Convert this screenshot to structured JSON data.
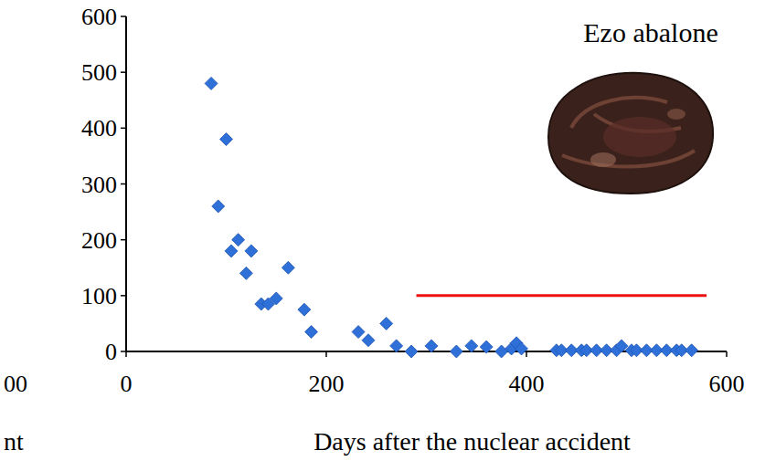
{
  "chart_data": {
    "type": "scatter",
    "title": "Ezo abalone",
    "x_label": "Days after the nuclear accident",
    "x": [
      85,
      92,
      100,
      105,
      112,
      120,
      125,
      135,
      142,
      150,
      162,
      178,
      185,
      232,
      242,
      260,
      270,
      285,
      305,
      330,
      345,
      360,
      375,
      385,
      390,
      395,
      430,
      435,
      445,
      455,
      460,
      470,
      480,
      490,
      495,
      505,
      510,
      520,
      530,
      540,
      550,
      555,
      565
    ],
    "values": [
      480,
      260,
      380,
      180,
      200,
      140,
      180,
      85,
      85,
      95,
      150,
      75,
      35,
      35,
      20,
      50,
      10,
      0,
      10,
      0,
      10,
      8,
      0,
      5,
      15,
      5,
      2,
      2,
      2,
      2,
      2,
      2,
      2,
      2,
      10,
      2,
      2,
      2,
      2,
      2,
      2,
      2,
      2
    ],
    "color": "#2f6fd8",
    "marker": "diamond",
    "xlim": [
      0,
      600
    ],
    "xticks": [
      0,
      200,
      400,
      600
    ],
    "ylim": [
      0,
      600
    ],
    "yticks": [
      0,
      100,
      200,
      300,
      400,
      500,
      600
    ],
    "grid": false,
    "reference_lines": [
      {
        "y": 100,
        "x": [
          290,
          580
        ],
        "color": "#ee1111"
      }
    ],
    "annotations": [
      {
        "text": "00"
      },
      {
        "text": "nt"
      }
    ]
  }
}
